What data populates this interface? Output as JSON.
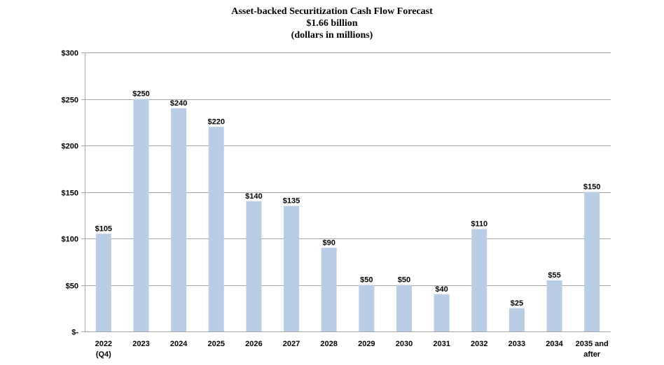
{
  "chart_data": {
    "type": "bar",
    "title": "Asset-backed Securitization Cash Flow Forecast",
    "subtitle": "$1.66 billion",
    "subtitle2": "(dollars in millions)",
    "xlabel": "",
    "ylabel": "",
    "categories": [
      [
        "2022",
        "(Q4)"
      ],
      [
        "2023"
      ],
      [
        "2024"
      ],
      [
        "2025"
      ],
      [
        "2026"
      ],
      [
        "2027"
      ],
      [
        "2028"
      ],
      [
        "2029"
      ],
      [
        "2030"
      ],
      [
        "2031"
      ],
      [
        "2032"
      ],
      [
        "2033"
      ],
      [
        "2034"
      ],
      [
        "2035 and",
        "after"
      ]
    ],
    "values": [
      105,
      250,
      240,
      220,
      140,
      135,
      90,
      50,
      50,
      40,
      110,
      25,
      55,
      150
    ],
    "data_labels": [
      "$105",
      "$250",
      "$240",
      "$220",
      "$140",
      "$135",
      "$90",
      "$50",
      "$50",
      "$40",
      "$110",
      "$25",
      "$55",
      "$150"
    ],
    "ylim": [
      0,
      300
    ],
    "yticks": [
      0,
      50,
      100,
      150,
      200,
      250,
      300
    ],
    "ytick_labels": [
      "$-",
      "$50",
      "$100",
      "$150",
      "$200",
      "$250",
      "$300"
    ],
    "grid": true,
    "legend": "none",
    "bar_color": "#b9cde5",
    "grid_color": "#a6a6a6"
  }
}
